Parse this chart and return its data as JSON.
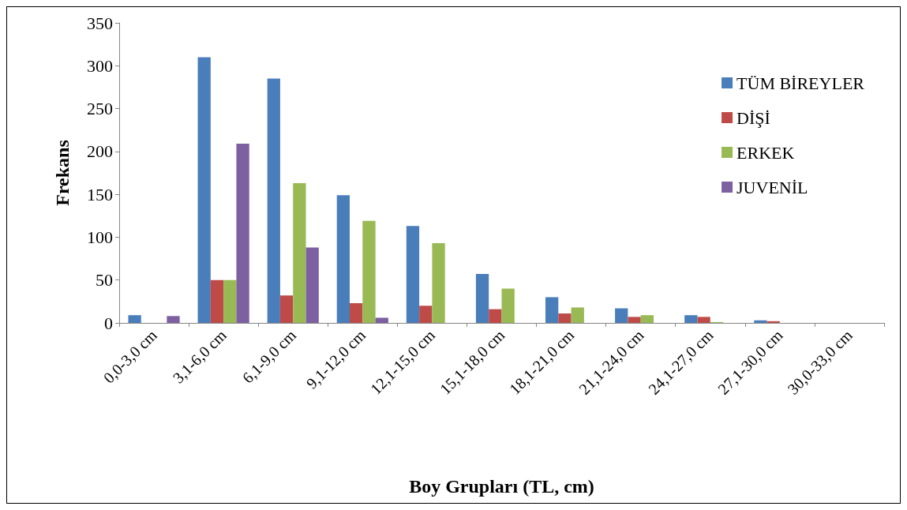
{
  "chart_data": {
    "type": "bar",
    "xlabel": "Boy Grupları (TL, cm)",
    "ylabel": "Frekans",
    "categories": [
      "0,0-3,0 cm",
      "3,1-6,0 cm",
      "6,1-9,0 cm",
      "9,1-12,0 cm",
      "12,1-15,0 cm",
      "15,1-18,0 cm",
      "18,1-21,0 cm",
      "21,1-24,0 cm",
      "24,1-27,0 cm",
      "27,1-30,0 cm",
      "30,0-33,0 cm"
    ],
    "series": [
      {
        "name": "TÜM BİREYLER",
        "color": "#4a7ebb",
        "values": [
          9,
          310,
          285,
          149,
          113,
          57,
          30,
          17,
          9,
          3,
          0
        ]
      },
      {
        "name": "DİŞİ",
        "color": "#be4b48",
        "values": [
          0,
          50,
          32,
          23,
          20,
          16,
          11,
          7,
          7,
          2,
          0
        ]
      },
      {
        "name": "ERKEK",
        "color": "#98b954",
        "values": [
          0,
          50,
          163,
          119,
          93,
          40,
          18,
          9,
          1,
          0,
          0
        ]
      },
      {
        "name": "JUVENİL",
        "color": "#7d60a0",
        "values": [
          8,
          209,
          88,
          6,
          0,
          0,
          0,
          0,
          0,
          0,
          0
        ]
      }
    ],
    "ylim": [
      0,
      350
    ],
    "yticks": [
      0,
      50,
      100,
      150,
      200,
      250,
      300,
      350
    ],
    "grid": false,
    "legend": "right"
  }
}
